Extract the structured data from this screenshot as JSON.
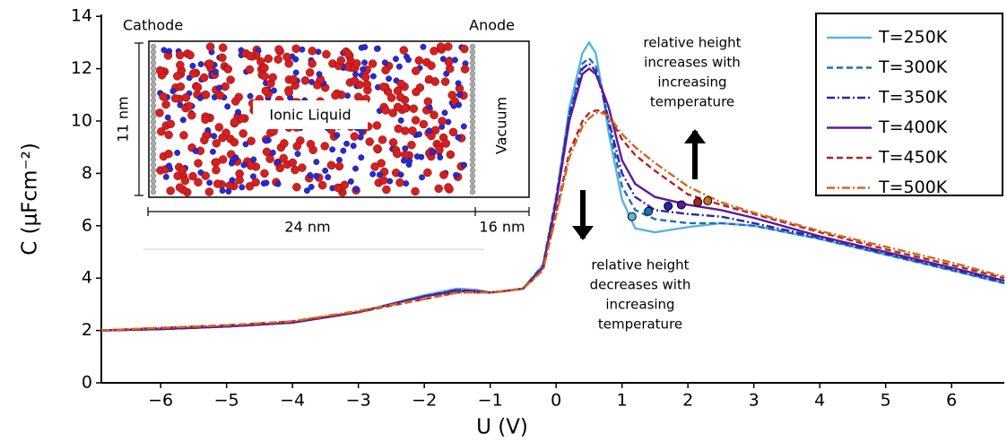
{
  "chart_data": {
    "type": "line",
    "x_label": "U (V)",
    "y_label": "C (μFcm⁻²)",
    "x": [
      -6.9,
      -6,
      -5,
      -4,
      -3,
      -2,
      -1.5,
      -1.2,
      -1,
      -0.8,
      -0.5,
      -0.2,
      0,
      0.2,
      0.4,
      0.5,
      0.6,
      0.7,
      0.8,
      1,
      1.2,
      1.5,
      2,
      2.5,
      3,
      4,
      5,
      6,
      6.8
    ],
    "series": [
      {
        "name": "T=250K",
        "color": "#5ab4e5",
        "dash": "solid",
        "values": [
          2.0,
          2.05,
          2.15,
          2.3,
          2.7,
          3.35,
          3.6,
          3.55,
          3.45,
          3.5,
          3.6,
          4.5,
          7.0,
          10.5,
          12.6,
          13.0,
          12.6,
          11.2,
          9.5,
          7.0,
          5.9,
          5.75,
          5.95,
          6.1,
          6.0,
          5.5,
          4.9,
          4.3,
          3.8
        ]
      },
      {
        "name": "T=300K",
        "color": "#1f6fb5",
        "dash": "dashed",
        "values": [
          2.0,
          2.05,
          2.15,
          2.3,
          2.7,
          3.3,
          3.55,
          3.5,
          3.45,
          3.5,
          3.6,
          4.5,
          7.1,
          10.3,
          12.2,
          12.4,
          12.1,
          11.2,
          9.8,
          7.5,
          6.6,
          6.25,
          6.1,
          6.1,
          6.0,
          5.5,
          4.9,
          4.3,
          3.8
        ]
      },
      {
        "name": "T=350K",
        "color": "#2525b5",
        "dash": "dashdot",
        "values": [
          2.0,
          2.05,
          2.15,
          2.3,
          2.7,
          3.3,
          3.55,
          3.5,
          3.45,
          3.5,
          3.6,
          4.4,
          7.0,
          10.2,
          12.0,
          12.2,
          11.9,
          11.1,
          10.0,
          8.0,
          7.1,
          6.6,
          6.45,
          6.35,
          6.1,
          5.55,
          4.95,
          4.35,
          3.85
        ]
      },
      {
        "name": "T=400K",
        "color": "#5a1a9a",
        "dash": "solid",
        "values": [
          2.0,
          2.05,
          2.15,
          2.3,
          2.7,
          3.3,
          3.5,
          3.5,
          3.45,
          3.5,
          3.6,
          4.4,
          6.9,
          10.0,
          11.8,
          12.0,
          11.8,
          11.2,
          10.5,
          8.5,
          7.6,
          7.1,
          6.8,
          6.6,
          6.3,
          5.6,
          5.0,
          4.4,
          3.9
        ]
      },
      {
        "name": "T=450K",
        "color": "#b22222",
        "dash": "dashed",
        "values": [
          2.0,
          2.1,
          2.2,
          2.35,
          2.7,
          3.2,
          3.45,
          3.45,
          3.45,
          3.5,
          3.6,
          4.3,
          6.5,
          8.8,
          10.0,
          10.3,
          10.4,
          10.4,
          10.2,
          9.3,
          8.7,
          8.1,
          7.2,
          6.8,
          6.45,
          5.75,
          5.1,
          4.5,
          4.0
        ]
      },
      {
        "name": "T=500K",
        "color": "#d2691e",
        "dash": "dashdot",
        "values": [
          2.0,
          2.1,
          2.2,
          2.35,
          2.75,
          3.2,
          3.45,
          3.45,
          3.45,
          3.5,
          3.6,
          4.3,
          6.4,
          8.6,
          9.8,
          10.1,
          10.3,
          10.3,
          10.2,
          9.5,
          9.0,
          8.4,
          7.5,
          6.9,
          6.5,
          5.8,
          5.2,
          4.6,
          4.05
        ]
      }
    ],
    "markers": {
      "x": [
        1.15,
        1.4,
        1.7,
        1.9,
        2.15,
        2.3
      ],
      "y": [
        6.35,
        6.55,
        6.75,
        6.8,
        6.9,
        6.95
      ]
    },
    "xlim": [
      -6.9,
      6.8
    ],
    "ylim": [
      0,
      14
    ],
    "xticks": [
      {
        "value": -6,
        "label": "−6"
      },
      {
        "value": -5,
        "label": "−5"
      },
      {
        "value": -4,
        "label": "−4"
      },
      {
        "value": -3,
        "label": "−3"
      },
      {
        "value": -2,
        "label": "−2"
      },
      {
        "value": -1,
        "label": "−1"
      },
      0,
      1,
      2,
      3,
      4,
      5,
      6
    ],
    "yticks": [
      0,
      2,
      4,
      6,
      8,
      10,
      12,
      14
    ],
    "grid": false,
    "legend": "upper right",
    "annotations": [
      {
        "lines": [
          "relative height",
          "increases with",
          "increasing",
          "temperature"
        ]
      },
      {
        "lines": [
          "relative height",
          "decreases with",
          "increasing",
          "temperature"
        ]
      }
    ]
  },
  "inset": {
    "left_label": "Cathode",
    "right_label": "Anode",
    "center_label": "Ionic Liquid",
    "vacuum_label": "Vacuum",
    "height_label": "11 nm",
    "width_label": "24 nm",
    "gap_label": "16 nm"
  }
}
